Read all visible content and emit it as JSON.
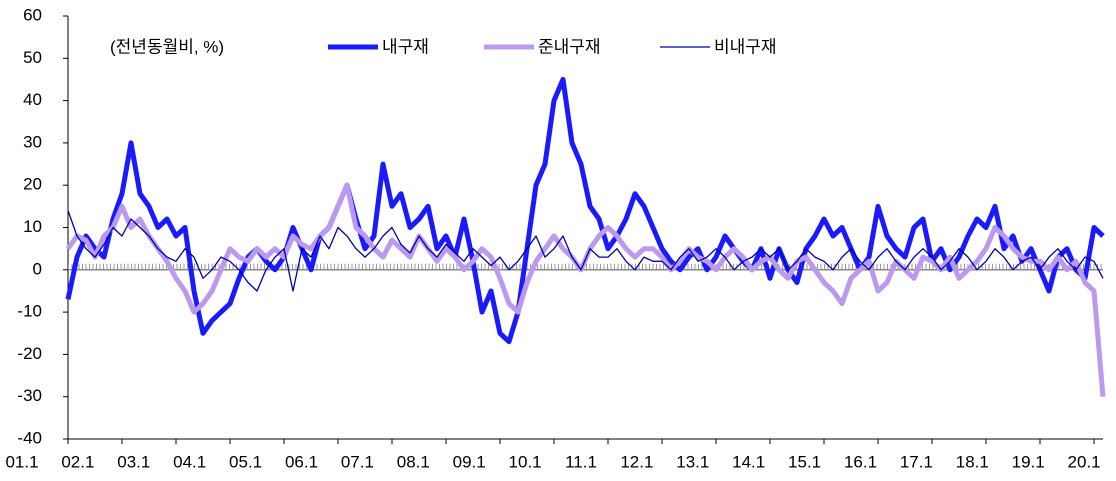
{
  "chart_data": {
    "type": "line",
    "legend_title": "(전년동월비, %)",
    "categories": [
      "01.1",
      null,
      null,
      null,
      null,
      null,
      "02.1",
      null,
      null,
      null,
      null,
      null,
      "03.1",
      null,
      null,
      null,
      null,
      null,
      "04.1",
      null,
      null,
      null,
      null,
      null,
      "05.1",
      null,
      null,
      null,
      null,
      null,
      "06.1",
      null,
      null,
      null,
      null,
      null,
      "07.1",
      null,
      null,
      null,
      null,
      null,
      "08.1",
      null,
      null,
      null,
      null,
      null,
      "09.1",
      null,
      null,
      null,
      null,
      null,
      "10.1",
      null,
      null,
      null,
      null,
      null,
      "11.1",
      null,
      null,
      null,
      null,
      null,
      "12.1",
      null,
      null,
      null,
      null,
      null,
      "13.1",
      null,
      null,
      null,
      null,
      null,
      "14.1",
      null,
      null,
      null,
      null,
      null,
      "15.1",
      null,
      null,
      null,
      null,
      null,
      "16.1",
      null,
      null,
      null,
      null,
      null,
      "17.1",
      null,
      null,
      null,
      null,
      null,
      "18.1",
      null,
      null,
      null,
      null,
      null,
      "19.1",
      null,
      null,
      null,
      null,
      null,
      "20.1",
      null
    ],
    "series": [
      {
        "name": "내구재",
        "color": "#1a1aff",
        "width": 5,
        "values": [
          -7,
          3,
          8,
          5,
          3,
          12,
          18,
          30,
          18,
          15,
          10,
          12,
          8,
          10,
          -5,
          -15,
          -12,
          -10,
          -8,
          -2,
          3,
          5,
          2,
          0,
          3,
          10,
          5,
          0,
          8,
          10,
          15,
          20,
          12,
          5,
          8,
          25,
          15,
          18,
          10,
          12,
          15,
          5,
          8,
          3,
          12,
          2,
          -10,
          -5,
          -15,
          -17,
          -10,
          5,
          20,
          25,
          40,
          45,
          30,
          25,
          15,
          12,
          5,
          8,
          12,
          18,
          15,
          10,
          5,
          2,
          0,
          3,
          5,
          0,
          3,
          8,
          5,
          2,
          0,
          5,
          -2,
          5,
          0,
          -3,
          5,
          8,
          12,
          8,
          10,
          5,
          0,
          3,
          15,
          8,
          5,
          3,
          10,
          12,
          2,
          5,
          0,
          3,
          8,
          12,
          10,
          15,
          5,
          8,
          2,
          5,
          0,
          -5,
          3,
          5,
          0,
          -2,
          10,
          8
        ]
      },
      {
        "name": "준내구재",
        "color": "#bb99ee",
        "width": 5,
        "values": [
          5,
          8,
          7,
          3,
          8,
          10,
          15,
          10,
          12,
          8,
          5,
          2,
          -2,
          -5,
          -10,
          -8,
          -5,
          0,
          5,
          3,
          2,
          5,
          3,
          5,
          3,
          8,
          6,
          5,
          8,
          10,
          15,
          20,
          10,
          8,
          5,
          3,
          7,
          5,
          3,
          8,
          5,
          2,
          5,
          3,
          0,
          2,
          5,
          3,
          -2,
          -8,
          -10,
          -3,
          2,
          5,
          8,
          5,
          3,
          0,
          5,
          8,
          10,
          8,
          5,
          3,
          5,
          5,
          3,
          0,
          2,
          5,
          3,
          2,
          0,
          3,
          5,
          3,
          0,
          2,
          3,
          0,
          -2,
          2,
          3,
          0,
          -3,
          -5,
          -8,
          -2,
          0,
          2,
          -5,
          -3,
          2,
          0,
          -2,
          3,
          2,
          0,
          3,
          -2,
          0,
          2,
          5,
          10,
          8,
          5,
          3,
          2,
          2,
          0,
          3,
          0,
          2,
          -3,
          -5,
          -30
        ]
      },
      {
        "name": "비내구재",
        "color": "#0000aa",
        "width": 1.3,
        "values": [
          14,
          8,
          5,
          3,
          6,
          10,
          8,
          12,
          10,
          8,
          5,
          3,
          2,
          5,
          3,
          -2,
          0,
          3,
          2,
          0,
          -3,
          -5,
          0,
          3,
          5,
          -5,
          5,
          3,
          8,
          5,
          10,
          8,
          5,
          3,
          5,
          8,
          10,
          6,
          4,
          8,
          5,
          3,
          6,
          4,
          2,
          5,
          3,
          1,
          3,
          0,
          2,
          5,
          8,
          3,
          5,
          8,
          3,
          0,
          5,
          3,
          3,
          5,
          2,
          0,
          3,
          2,
          2,
          0,
          3,
          5,
          2,
          3,
          5,
          3,
          0,
          2,
          3,
          5,
          3,
          5,
          0,
          2,
          5,
          3,
          2,
          0,
          3,
          5,
          2,
          0,
          3,
          5,
          2,
          0,
          3,
          5,
          3,
          0,
          2,
          5,
          3,
          0,
          2,
          5,
          3,
          0,
          2,
          3,
          0,
          3,
          5,
          2,
          0,
          3,
          2,
          -2
        ]
      }
    ],
    "ylim": [
      -40,
      60
    ],
    "yticks": [
      -40,
      -30,
      -20,
      -10,
      0,
      10,
      20,
      30,
      40,
      50,
      60
    ]
  }
}
